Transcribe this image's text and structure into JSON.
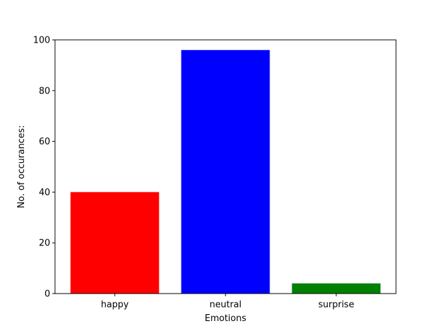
{
  "chart_data": {
    "type": "bar",
    "title": "",
    "xlabel": "Emotions",
    "ylabel": "No. of occurances:",
    "categories": [
      "happy",
      "neutral",
      "surprise"
    ],
    "values": [
      40,
      96,
      4
    ],
    "colors": [
      "#ff0000",
      "#0000ff",
      "#008000"
    ],
    "ylim": [
      0,
      100
    ],
    "yticks": [
      0,
      20,
      40,
      60,
      80,
      100
    ],
    "grid": false,
    "legend": "none"
  }
}
